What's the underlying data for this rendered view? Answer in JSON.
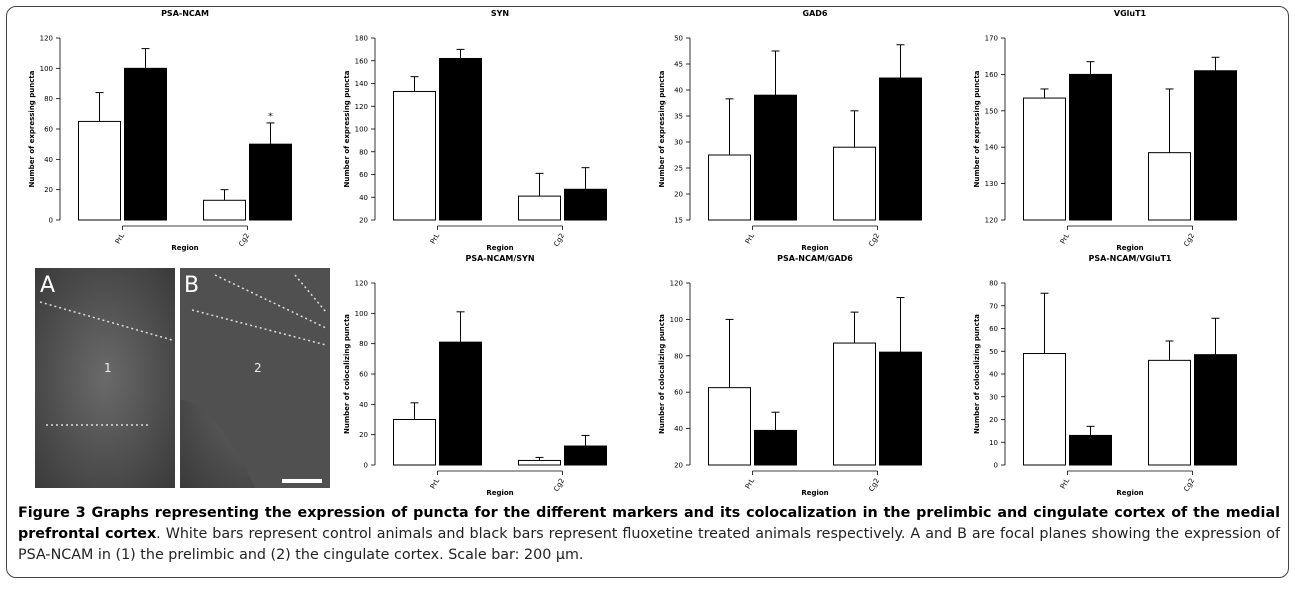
{
  "chart_data": [
    {
      "type": "bar",
      "title": "PSA-NCAM",
      "categories": [
        "PrL",
        "Cg2"
      ],
      "xlabel": "Region",
      "ylabel": "Number of expressing puncta",
      "series": [
        {
          "color": "#ffffff",
          "values": [
            65,
            13
          ],
          "errors": [
            19,
            7
          ]
        },
        {
          "color": "#000000",
          "values": [
            100,
            50
          ],
          "errors": [
            13,
            14
          ]
        }
      ],
      "ylim": [
        0,
        120
      ],
      "yticks": [
        0,
        20,
        40,
        60,
        80,
        100,
        120
      ],
      "annotation": "*"
    },
    {
      "type": "bar",
      "title": "SYN",
      "categories": [
        "PrL",
        "Cg2"
      ],
      "xlabel": "Region",
      "ylabel": "Number of expressing puncta",
      "series": [
        {
          "color": "#ffffff",
          "values": [
            133,
            41
          ],
          "errors": [
            13,
            20
          ]
        },
        {
          "color": "#000000",
          "values": [
            162,
            47
          ],
          "errors": [
            8,
            19
          ]
        }
      ],
      "ylim": [
        20,
        180
      ],
      "yticks": [
        20,
        40,
        60,
        80,
        100,
        120,
        140,
        160,
        180
      ]
    },
    {
      "type": "bar",
      "title": "GAD6",
      "categories": [
        "PrL",
        "Cg2"
      ],
      "xlabel": "Region",
      "ylabel": "Number of expressing puncta",
      "series": [
        {
          "color": "#ffffff",
          "values": [
            27.5,
            29
          ],
          "errors": [
            10.8,
            7
          ]
        },
        {
          "color": "#000000",
          "values": [
            39,
            42.3
          ],
          "errors": [
            8.5,
            6.4
          ]
        }
      ],
      "ylim": [
        15,
        50
      ],
      "yticks": [
        15,
        20,
        25,
        30,
        35,
        40,
        45,
        50
      ]
    },
    {
      "type": "bar",
      "title": "VGluT1",
      "categories": [
        "PrL",
        "Cg2"
      ],
      "xlabel": "Region",
      "ylabel": "Number of expressing puncta",
      "series": [
        {
          "color": "#ffffff",
          "values": [
            153.5,
            138.5
          ],
          "errors": [
            2.5,
            17.5
          ]
        },
        {
          "color": "#000000",
          "values": [
            160,
            161
          ],
          "errors": [
            3.5,
            3.7
          ]
        }
      ],
      "ylim": [
        120,
        170
      ],
      "yticks": [
        120,
        130,
        140,
        150,
        160,
        170
      ]
    },
    {
      "type": "bar",
      "title": "PSA-NCAM/SYN",
      "categories": [
        "PrL",
        "Cg2"
      ],
      "xlabel": "Region",
      "ylabel": "Number of colocalizing puncta",
      "series": [
        {
          "color": "#ffffff",
          "values": [
            30,
            3
          ],
          "errors": [
            11,
            2
          ]
        },
        {
          "color": "#000000",
          "values": [
            81,
            12.5
          ],
          "errors": [
            20,
            7
          ]
        }
      ],
      "ylim": [
        0,
        120
      ],
      "yticks": [
        0,
        20,
        40,
        60,
        80,
        100,
        120
      ]
    },
    {
      "type": "bar",
      "title": "PSA-NCAM/GAD6",
      "categories": [
        "PrL",
        "Cg2"
      ],
      "xlabel": "Region",
      "ylabel": "Number of colocalizing puncta",
      "series": [
        {
          "color": "#ffffff",
          "values": [
            62.5,
            87
          ],
          "errors": [
            37.5,
            17
          ]
        },
        {
          "color": "#000000",
          "values": [
            39,
            82
          ],
          "errors": [
            10,
            30
          ]
        }
      ],
      "ylim": [
        20,
        120
      ],
      "yticks": [
        20,
        40,
        60,
        80,
        100,
        120
      ]
    },
    {
      "type": "bar",
      "title": "PSA-NCAM/VGluT1",
      "categories": [
        "PrL",
        "Cg2"
      ],
      "xlabel": "Region",
      "ylabel": "Number of colocalizing puncta",
      "series": [
        {
          "color": "#ffffff",
          "values": [
            49,
            46
          ],
          "errors": [
            26.5,
            8.5
          ]
        },
        {
          "color": "#000000",
          "values": [
            13,
            48.5
          ],
          "errors": [
            4,
            16
          ]
        }
      ],
      "ylim": [
        0,
        80
      ],
      "yticks": [
        0,
        10,
        20,
        30,
        40,
        50,
        60,
        70,
        80
      ]
    }
  ],
  "micrographs": {
    "panels": [
      {
        "label": "A",
        "region": "1"
      },
      {
        "label": "B",
        "region": "2"
      }
    ]
  },
  "caption": {
    "title": "Figure 3 Graphs representing the expression of puncta for the different markers and its colocalization in the prelimbic and cingulate cortex of the medial prefrontal cortex",
    "text": ". White bars represent control animals and black bars represent fluoxetine treated animals respectively. A and B are focal planes showing the expression of PSA-NCAM in (1) the prelimbic and (2) the cingulate cortex. Scale bar: 200 μm."
  }
}
